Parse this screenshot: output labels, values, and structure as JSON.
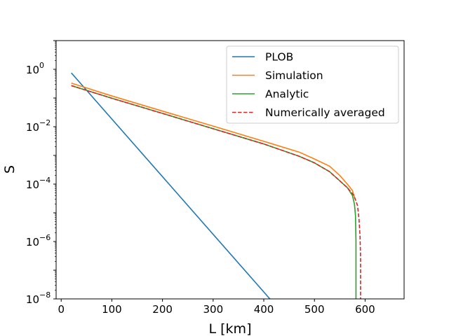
{
  "chart_data": {
    "type": "line",
    "title": "",
    "xlabel": "L [km]",
    "ylabel": "S",
    "xlim": [
      -10,
      677
    ],
    "ylim_log10": [
      -8,
      1
    ],
    "yscale": "log",
    "grid": false,
    "legend_position": "top-right",
    "x_ticks": [
      {
        "value": 0,
        "label": "0"
      },
      {
        "value": 100,
        "label": "100"
      },
      {
        "value": 200,
        "label": "200"
      },
      {
        "value": 300,
        "label": "300"
      },
      {
        "value": 400,
        "label": "400"
      },
      {
        "value": 500,
        "label": "500"
      },
      {
        "value": 600,
        "label": "600"
      }
    ],
    "y_ticks": [
      {
        "exp": 0,
        "base": "10",
        "sup": "0"
      },
      {
        "exp": -2,
        "base": "10",
        "sup": "−2"
      },
      {
        "exp": -4,
        "base": "10",
        "sup": "−4"
      },
      {
        "exp": -6,
        "base": "10",
        "sup": "−6"
      },
      {
        "exp": -8,
        "base": "10",
        "sup": "−8"
      }
    ],
    "series": [
      {
        "name": "PLOB",
        "color": "#1f77b4",
        "dash": "solid",
        "x": [
          20,
          412
        ],
        "y": [
          0.75,
          1e-08
        ]
      },
      {
        "name": "Simulation",
        "color": "#ff7f0e",
        "dash": "solid",
        "x": [
          20,
          100,
          200,
          300,
          400,
          470,
          500,
          530,
          550,
          565,
          575,
          580
        ],
        "y": [
          0.33,
          0.118,
          0.035,
          0.0105,
          0.0031,
          0.0013,
          0.00075,
          0.00042,
          0.0002,
          0.0001,
          6e-05,
          3e-05
        ]
      },
      {
        "name": "Analytic",
        "color": "#2ca02c",
        "dash": "solid",
        "x": [
          20,
          100,
          200,
          300,
          400,
          470,
          500,
          530,
          550,
          565,
          575,
          579,
          581,
          582,
          582
        ],
        "y": [
          0.27,
          0.098,
          0.029,
          0.0085,
          0.0025,
          0.00093,
          0.00055,
          0.00027,
          0.00013,
          7.5e-05,
          4e-05,
          2e-05,
          8e-06,
          1e-06,
          1e-08
        ]
      },
      {
        "name": "Numerically averaged",
        "color": "#d62728",
        "dash": "dashed",
        "x": [
          20,
          100,
          200,
          300,
          400,
          470,
          500,
          530,
          550,
          565,
          578,
          585,
          588,
          590,
          591,
          591
        ],
        "y": [
          0.27,
          0.098,
          0.029,
          0.0085,
          0.0025,
          0.00093,
          0.00055,
          0.00027,
          0.00013,
          7.5e-05,
          4e-05,
          1.8e-05,
          6e-06,
          1.5e-06,
          3e-07,
          1e-08
        ]
      }
    ]
  }
}
